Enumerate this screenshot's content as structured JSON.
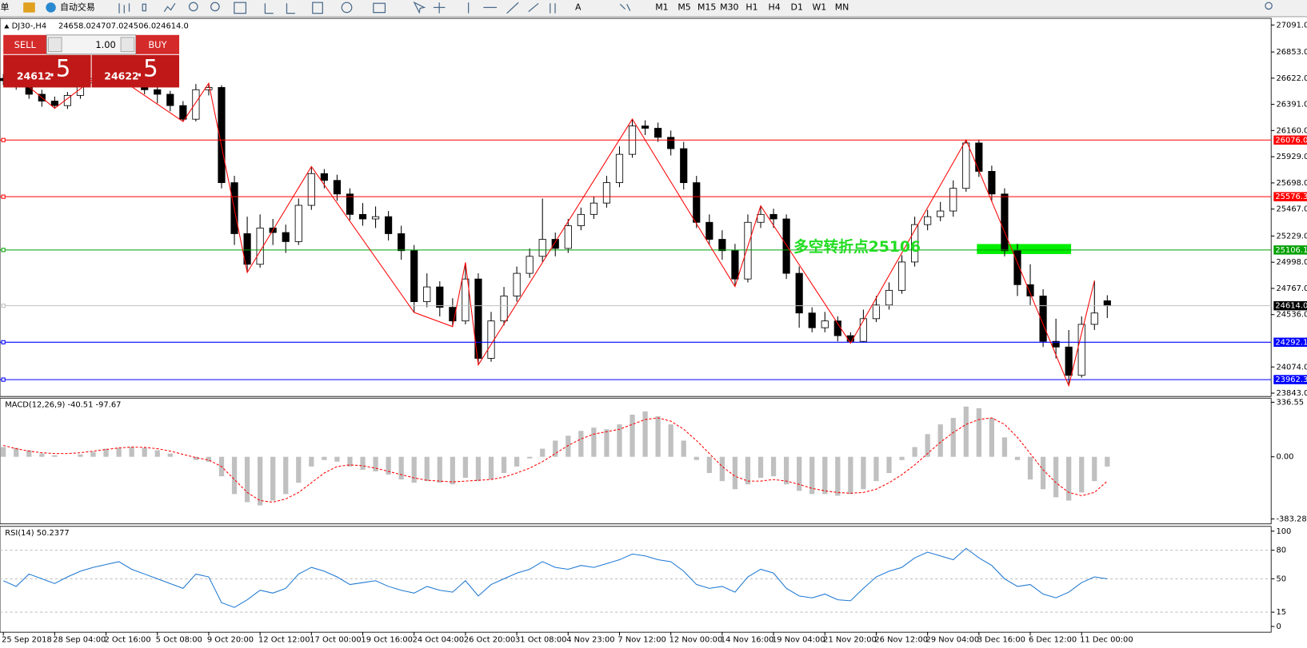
{
  "toolbar": {
    "menu": "订单",
    "auto_trading": "自动交易",
    "text_tool": "A",
    "timeframes": [
      "M1",
      "M5",
      "M15",
      "M30",
      "H1",
      "H4",
      "D1",
      "W1",
      "MN"
    ]
  },
  "trade_panel": {
    "sell": "SELL",
    "buy": "BUY",
    "volume": "1.00",
    "bid_main": "24612",
    "bid_frac": ".5",
    "ask_main": "24622",
    "ask_frac": ".5"
  },
  "chart_data": [
    {
      "type": "candlestick",
      "title": "DJ30-,H4",
      "quote": [
        "24658.0",
        "24707.0",
        "24506.0",
        "24614.0"
      ],
      "x_labels": [
        "25 Sep 2018",
        "28 Sep 04:00",
        "2 Oct 16:00",
        "5 Oct 08:00",
        "9 Oct 20:00",
        "12 Oct 12:00",
        "17 Oct 00:00",
        "19 Oct 16:00",
        "24 Oct 04:00",
        "26 Oct 20:00",
        "31 Oct 08:00",
        "4 Nov 23:00",
        "7 Nov 12:00",
        "12 Nov 00:00",
        "14 Nov 16:00",
        "19 Nov 04:00",
        "21 Nov 20:00",
        "26 Nov 12:00",
        "29 Nov 04:00",
        "3 Dec 16:00",
        "6 Dec 12:00",
        "11 Dec 00:00"
      ],
      "open": [
        26620,
        26600,
        26577,
        26480,
        26420,
        26380,
        26470,
        26580,
        26620,
        26650,
        26640,
        26600,
        26520,
        26480,
        26380,
        26260,
        26520,
        26540,
        25700,
        25250,
        24980,
        25300,
        25260,
        25180,
        25500,
        25780,
        25720,
        25600,
        25420,
        25380,
        25400,
        25250,
        25100,
        24650,
        24780,
        24600,
        24480,
        24850,
        24150,
        24480,
        24700,
        24900,
        25050,
        25200,
        25120,
        25320,
        25420,
        25520,
        25700,
        25950,
        26200,
        26180,
        26100,
        26000,
        25700,
        25350,
        25200,
        25100,
        24850,
        25350,
        25420,
        25380,
        24900,
        24550,
        24420,
        24480,
        24350,
        24300,
        24500,
        24620,
        24750,
        25000,
        25330,
        25400,
        25450,
        25650,
        26050,
        25800,
        25600,
        25100,
        24800,
        24700,
        24300,
        24250,
        24000,
        24450,
        24658
      ],
      "high": [
        26660,
        26640,
        26610,
        26520,
        26460,
        26500,
        26620,
        26680,
        26700,
        26690,
        26670,
        26630,
        26560,
        26510,
        26420,
        26570,
        26577,
        26560,
        25760,
        25400,
        25420,
        25380,
        25330,
        25560,
        25842,
        25820,
        25770,
        25650,
        25520,
        25490,
        25450,
        25320,
        25150,
        24900,
        24830,
        24680,
        24996,
        24900,
        24560,
        24780,
        24960,
        25120,
        25560,
        25260,
        25380,
        25480,
        25580,
        25760,
        26020,
        26261,
        26250,
        26230,
        26160,
        26060,
        25760,
        25420,
        25280,
        25160,
        25420,
        25496,
        25470,
        25420,
        24960,
        24600,
        24560,
        24520,
        24380,
        24580,
        24700,
        24820,
        25060,
        25400,
        25460,
        25530,
        25720,
        26077,
        26080,
        25850,
        25650,
        25160,
        24980,
        24760,
        24500,
        24400,
        24520,
        24835,
        24707
      ],
      "low": [
        26560,
        26520,
        26440,
        26370,
        26356,
        26350,
        26440,
        26550,
        26590,
        26600,
        26560,
        26480,
        26400,
        26330,
        26239,
        26240,
        26470,
        25650,
        25150,
        24908,
        24950,
        25150,
        25080,
        25150,
        25460,
        25650,
        25540,
        25370,
        25320,
        25300,
        25190,
        25020,
        24555,
        24600,
        24520,
        24430,
        24450,
        24092,
        24120,
        24440,
        24650,
        24860,
        25000,
        25050,
        25080,
        25280,
        25380,
        25480,
        25660,
        25920,
        26120,
        26060,
        25940,
        25640,
        25300,
        25150,
        25020,
        24783,
        24820,
        25300,
        25300,
        24850,
        24420,
        24380,
        24380,
        24300,
        24284,
        24290,
        24470,
        24580,
        24720,
        24960,
        25280,
        25360,
        25400,
        25620,
        25750,
        25540,
        25050,
        24700,
        24620,
        24250,
        24150,
        23909,
        23980,
        24400,
        24506
      ],
      "close": [
        26600,
        26577,
        26480,
        26420,
        26380,
        26470,
        26580,
        26620,
        26650,
        26640,
        26600,
        26520,
        26480,
        26380,
        26260,
        26520,
        26540,
        25700,
        25250,
        24980,
        25300,
        25260,
        25180,
        25500,
        25780,
        25720,
        25600,
        25420,
        25380,
        25400,
        25250,
        25100,
        24650,
        24780,
        24600,
        24480,
        24850,
        24150,
        24480,
        24700,
        24900,
        25050,
        25200,
        25120,
        25320,
        25420,
        25520,
        25700,
        25950,
        26200,
        26180,
        26100,
        26000,
        25700,
        25350,
        25200,
        25100,
        24850,
        25350,
        25420,
        25380,
        24900,
        24550,
        24420,
        24480,
        24350,
        24300,
        24500,
        24620,
        24750,
        25000,
        25330,
        25400,
        25450,
        25650,
        26050,
        25800,
        25600,
        25100,
        24800,
        24700,
        24300,
        24250,
        24000,
        24450,
        24550,
        24614
      ],
      "up_color": "#ffffff",
      "down_color": "#000000",
      "ylim": [
        23821,
        27150
      ],
      "yticks": [
        {
          "value": 27091,
          "label": "27091.0"
        },
        {
          "value": 26853,
          "label": "26853.0"
        },
        {
          "value": 26622,
          "label": "26622.0"
        },
        {
          "value": 26391,
          "label": "26391.0"
        },
        {
          "value": 26160,
          "label": "26160.0"
        },
        {
          "value": 25929,
          "label": "25929.0"
        },
        {
          "value": 25698,
          "label": "25698.0"
        },
        {
          "value": 25467,
          "label": "25467.0"
        },
        {
          "value": 25229,
          "label": "25229.0"
        },
        {
          "value": 24998,
          "label": "24998.0"
        },
        {
          "value": 24767,
          "label": "24767.0"
        },
        {
          "value": 24536,
          "label": "24536.0"
        },
        {
          "value": 24074,
          "label": "24074.0"
        },
        {
          "value": 23843,
          "label": "23843.0"
        }
      ],
      "levels": [
        {
          "value": 26076,
          "label": "26076.0",
          "color": "#ff0000",
          "label_color": "#ff0000"
        },
        {
          "value": 25576.3,
          "label": "25576.3",
          "color": "#ff0000",
          "label_color": "#ff0000"
        },
        {
          "value": 25106.1,
          "label": "25106.1",
          "color": "#00a000",
          "label_color": "#00a000"
        },
        {
          "value": 24614,
          "label": "24614.0",
          "color": "#c0c0c0",
          "label_color": "#000000"
        },
        {
          "value": 24292.1,
          "label": "24292.1",
          "color": "#0000ff",
          "label_color": "#0000ff"
        },
        {
          "value": 23962.3,
          "label": "23962.3",
          "color": "#0000ff",
          "label_color": "#0000ff"
        }
      ],
      "zigzag": {
        "color": "#ff0000",
        "x": [
          1,
          4,
          8,
          14,
          16,
          19,
          24,
          32,
          35,
          36,
          37,
          49,
          57,
          59,
          66,
          75,
          83,
          85
        ],
        "values": [
          26640,
          26356,
          26700,
          26239,
          26577,
          24908,
          25842,
          24555,
          24430,
          24996,
          24092,
          26261,
          24783,
          25496,
          24284,
          26077,
          23909,
          24835
        ]
      },
      "annotation": "多空转折点25106"
    },
    {
      "type": "macd",
      "title": "MACD(12,26,9) -40.51 -97.67",
      "histogram": [
        60,
        55,
        40,
        20,
        10,
        0,
        15,
        30,
        50,
        55,
        60,
        55,
        40,
        20,
        0,
        -20,
        -30,
        -120,
        -230,
        -280,
        -300,
        -270,
        -230,
        -160,
        -60,
        -20,
        -30,
        -60,
        -80,
        -90,
        -110,
        -140,
        -160,
        -150,
        -160,
        -170,
        -130,
        -150,
        -140,
        -100,
        -60,
        -10,
        50,
        100,
        130,
        160,
        180,
        170,
        200,
        260,
        280,
        250,
        200,
        100,
        -20,
        -100,
        -150,
        -200,
        -170,
        -130,
        -120,
        -170,
        -210,
        -230,
        -230,
        -240,
        -230,
        -200,
        -150,
        -100,
        -20,
        60,
        140,
        200,
        240,
        310,
        300,
        240,
        120,
        -20,
        -140,
        -200,
        -250,
        -270,
        -220,
        -150,
        -60
      ],
      "signal": [
        70,
        50,
        35,
        25,
        20,
        20,
        25,
        35,
        45,
        55,
        60,
        58,
        50,
        35,
        15,
        -5,
        -20,
        -60,
        -140,
        -220,
        -270,
        -280,
        -260,
        -220,
        -160,
        -100,
        -60,
        -50,
        -55,
        -70,
        -90,
        -110,
        -130,
        -145,
        -150,
        -155,
        -150,
        -145,
        -140,
        -125,
        -100,
        -70,
        -30,
        20,
        70,
        110,
        140,
        155,
        170,
        200,
        230,
        240,
        220,
        170,
        100,
        20,
        -60,
        -120,
        -150,
        -150,
        -140,
        -150,
        -170,
        -195,
        -210,
        -220,
        -225,
        -220,
        -200,
        -160,
        -110,
        -50,
        20,
        90,
        150,
        200,
        230,
        240,
        200,
        120,
        20,
        -80,
        -160,
        -220,
        -240,
        -220,
        -150
      ],
      "hist_color": "#c0c0c0",
      "signal_color": "#ff0000",
      "ylim": [
        -414,
        362
      ],
      "yticks": [
        336.55,
        {
          "value": 0,
          "label": "0.00"
        },
        -383.28
      ]
    },
    {
      "type": "line",
      "title": "RSI(14) 50.2377",
      "values": [
        48,
        42,
        55,
        50,
        45,
        52,
        58,
        62,
        65,
        68,
        60,
        55,
        50,
        45,
        40,
        55,
        52,
        25,
        20,
        28,
        38,
        35,
        40,
        55,
        62,
        58,
        52,
        44,
        46,
        48,
        42,
        38,
        35,
        42,
        38,
        36,
        48,
        32,
        44,
        50,
        56,
        60,
        68,
        62,
        60,
        64,
        62,
        66,
        70,
        76,
        74,
        70,
        68,
        58,
        44,
        40,
        42,
        36,
        52,
        60,
        56,
        40,
        32,
        30,
        34,
        28,
        27,
        40,
        52,
        58,
        62,
        72,
        78,
        74,
        70,
        82,
        72,
        64,
        50,
        42,
        44,
        34,
        30,
        36,
        46,
        52,
        50
      ],
      "color": "#1e78d2",
      "levels": [
        80,
        50,
        15
      ],
      "ylim": [
        -6,
        105
      ],
      "yticks": [
        100,
        80,
        50,
        15,
        0
      ]
    }
  ]
}
